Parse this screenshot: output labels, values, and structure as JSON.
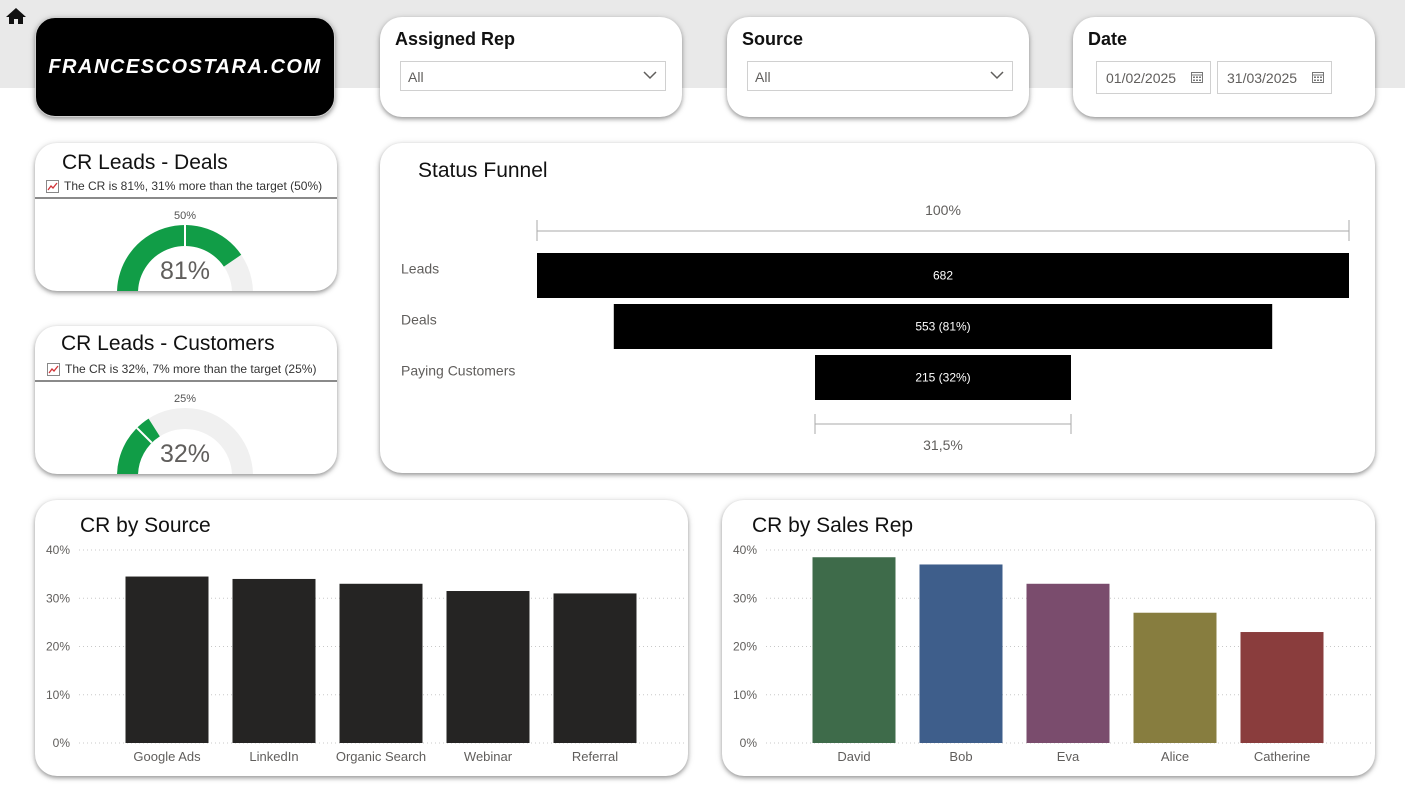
{
  "logo": {
    "text": "FRANCESCOSTARA.COM"
  },
  "filters": {
    "assigned_rep": {
      "label": "Assigned Rep",
      "value": "All"
    },
    "source": {
      "label": "Source",
      "value": "All"
    },
    "date": {
      "label": "Date",
      "start": "01/02/2025",
      "end": "31/03/2025"
    }
  },
  "kpis": [
    {
      "title": "CR Leads - Deals",
      "subtitle": "The CR is 81%, 31% more than the target (50%)",
      "value_label": "81%",
      "target_label": "50%",
      "value": 0.81,
      "target": 0.5,
      "color": "#119d47"
    },
    {
      "title": "CR Leads - Customers",
      "subtitle": "The CR is 32%, 7% more than the target (25%)",
      "value_label": "32%",
      "target_label": "25%",
      "value": 0.32,
      "target": 0.25,
      "color": "#119d47"
    }
  ],
  "funnel": {
    "title": "Status Funnel",
    "top_label": "100%",
    "bottom_label": "31,5%",
    "stages": [
      {
        "label": "Leads",
        "value": 682,
        "display": "682"
      },
      {
        "label": "Deals",
        "value": 553,
        "display": "553 (81%)"
      },
      {
        "label": "Paying Customers",
        "value": 215,
        "display": "215 (32%)"
      }
    ]
  },
  "chart_data": [
    {
      "type": "bar",
      "title": "CR by Source",
      "categories": [
        "Google Ads",
        "LinkedIn",
        "Organic Search",
        "Webinar",
        "Referral"
      ],
      "values": [
        34.5,
        34.0,
        33.0,
        31.5,
        31.0
      ],
      "ylim": [
        0,
        40
      ],
      "yticks": [
        "0%",
        "10%",
        "20%",
        "30%",
        "40%"
      ],
      "grid": true,
      "colors": [
        "#252423",
        "#252423",
        "#252423",
        "#252423",
        "#252423"
      ]
    },
    {
      "type": "bar",
      "title": "CR by Sales Rep",
      "categories": [
        "David",
        "Bob",
        "Eva",
        "Alice",
        "Catherine"
      ],
      "values": [
        38.5,
        37.0,
        33.0,
        27.0,
        23.0
      ],
      "ylim": [
        0,
        40
      ],
      "yticks": [
        "0%",
        "10%",
        "20%",
        "30%",
        "40%"
      ],
      "grid": true,
      "colors": [
        "#3e6b4a",
        "#3e5e8b",
        "#7a4c6d",
        "#877d3f",
        "#8a3d3d"
      ]
    }
  ]
}
